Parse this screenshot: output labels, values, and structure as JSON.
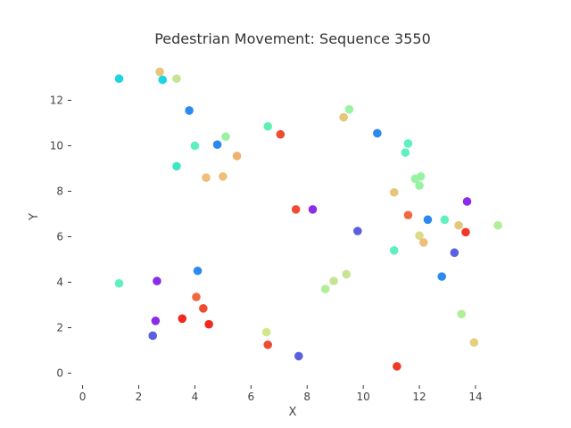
{
  "chart_data": {
    "type": "scatter",
    "title": "Pedestrian Movement: Sequence 3550",
    "xlabel": "X",
    "ylabel": "Y",
    "xlim": [
      -0.4,
      15.4
    ],
    "ylim": [
      -0.45,
      13.9
    ],
    "x_ticks": [
      0,
      2,
      4,
      6,
      8,
      10,
      12,
      14
    ],
    "y_ticks": [
      0,
      2,
      4,
      6,
      8,
      10,
      12
    ],
    "grid": false,
    "legend": "none",
    "points": [
      {
        "x": 1.3,
        "y": 12.95,
        "color": "#1ed4e0"
      },
      {
        "x": 2.75,
        "y": 13.25,
        "color": "#e6c67a"
      },
      {
        "x": 2.85,
        "y": 12.9,
        "color": "#1ed4e0"
      },
      {
        "x": 3.35,
        "y": 12.95,
        "color": "#c6e493"
      },
      {
        "x": 3.8,
        "y": 11.55,
        "color": "#2a8af0"
      },
      {
        "x": 4.0,
        "y": 10.0,
        "color": "#5ef0c0"
      },
      {
        "x": 4.8,
        "y": 10.05,
        "color": "#2a8af0"
      },
      {
        "x": 5.1,
        "y": 10.4,
        "color": "#98f2a4"
      },
      {
        "x": 3.35,
        "y": 9.1,
        "color": "#3ee6c8"
      },
      {
        "x": 4.4,
        "y": 8.6,
        "color": "#f0be78"
      },
      {
        "x": 5.0,
        "y": 8.65,
        "color": "#f0be78"
      },
      {
        "x": 5.5,
        "y": 9.55,
        "color": "#f0b070"
      },
      {
        "x": 6.6,
        "y": 10.85,
        "color": "#5ef0b0"
      },
      {
        "x": 7.05,
        "y": 10.5,
        "color": "#f04a30"
      },
      {
        "x": 9.3,
        "y": 11.25,
        "color": "#e6c67a"
      },
      {
        "x": 9.5,
        "y": 11.6,
        "color": "#98f2a4"
      },
      {
        "x": 10.5,
        "y": 10.55,
        "color": "#2a8af0"
      },
      {
        "x": 11.6,
        "y": 10.1,
        "color": "#5ef0c0"
      },
      {
        "x": 11.5,
        "y": 9.7,
        "color": "#5ef0c0"
      },
      {
        "x": 11.85,
        "y": 8.55,
        "color": "#98f2a4"
      },
      {
        "x": 12.05,
        "y": 8.65,
        "color": "#98f2a4"
      },
      {
        "x": 12.0,
        "y": 8.25,
        "color": "#98f2a4"
      },
      {
        "x": 11.1,
        "y": 7.95,
        "color": "#e6c67a"
      },
      {
        "x": 7.6,
        "y": 7.2,
        "color": "#f04a30"
      },
      {
        "x": 8.2,
        "y": 7.2,
        "color": "#8a2ce8"
      },
      {
        "x": 9.8,
        "y": 6.25,
        "color": "#5a5ee0"
      },
      {
        "x": 11.6,
        "y": 6.95,
        "color": "#f06a40"
      },
      {
        "x": 12.3,
        "y": 6.75,
        "color": "#2a8af0"
      },
      {
        "x": 12.9,
        "y": 6.75,
        "color": "#5ef0c0"
      },
      {
        "x": 13.4,
        "y": 6.5,
        "color": "#e6c67a"
      },
      {
        "x": 13.7,
        "y": 7.55,
        "color": "#8a2ce8"
      },
      {
        "x": 13.65,
        "y": 6.2,
        "color": "#f03a28"
      },
      {
        "x": 14.8,
        "y": 6.5,
        "color": "#b0ee98"
      },
      {
        "x": 12.0,
        "y": 6.05,
        "color": "#dadc8a"
      },
      {
        "x": 12.15,
        "y": 5.75,
        "color": "#f0be78"
      },
      {
        "x": 11.1,
        "y": 5.4,
        "color": "#5ef0c0"
      },
      {
        "x": 13.25,
        "y": 5.3,
        "color": "#5a5ee0"
      },
      {
        "x": 12.8,
        "y": 4.25,
        "color": "#2a8af0"
      },
      {
        "x": 1.3,
        "y": 3.95,
        "color": "#5ef0c0"
      },
      {
        "x": 2.65,
        "y": 4.05,
        "color": "#8a2ce8"
      },
      {
        "x": 4.1,
        "y": 4.5,
        "color": "#2a8af0"
      },
      {
        "x": 4.05,
        "y": 3.35,
        "color": "#f06a40"
      },
      {
        "x": 4.3,
        "y": 2.85,
        "color": "#f04a30"
      },
      {
        "x": 3.55,
        "y": 2.4,
        "color": "#f02a20"
      },
      {
        "x": 4.5,
        "y": 2.15,
        "color": "#f02a20"
      },
      {
        "x": 2.6,
        "y": 2.3,
        "color": "#8a2ce8"
      },
      {
        "x": 2.5,
        "y": 1.65,
        "color": "#5a5ee0"
      },
      {
        "x": 6.55,
        "y": 1.8,
        "color": "#d0e88a"
      },
      {
        "x": 6.6,
        "y": 1.25,
        "color": "#f04a30"
      },
      {
        "x": 7.7,
        "y": 0.75,
        "color": "#5a5ee0"
      },
      {
        "x": 8.65,
        "y": 3.7,
        "color": "#b0ee98"
      },
      {
        "x": 8.95,
        "y": 4.05,
        "color": "#c6e493"
      },
      {
        "x": 9.4,
        "y": 4.35,
        "color": "#c6e493"
      },
      {
        "x": 11.2,
        "y": 0.3,
        "color": "#f03a28"
      },
      {
        "x": 13.5,
        "y": 2.6,
        "color": "#b0ee98"
      },
      {
        "x": 13.95,
        "y": 1.35,
        "color": "#e6d080"
      }
    ]
  }
}
